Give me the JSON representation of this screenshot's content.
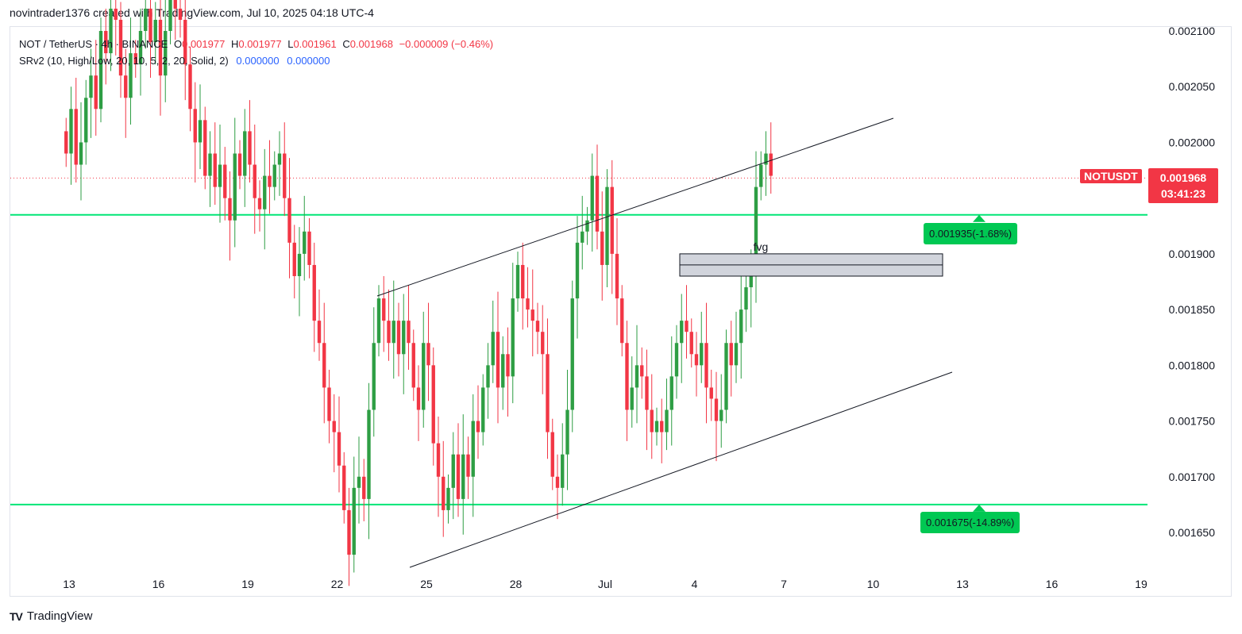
{
  "header": {
    "text": "novintrader1376 created with TradingView.com, Jul 10, 2025 04:18 UTC-4"
  },
  "legend": {
    "symbol": "NOT / TetherUS · 4h · BINANCE",
    "o_label": "O",
    "o": "0.001977",
    "h_label": "H",
    "h": "0.001977",
    "l_label": "L",
    "l": "0.001961",
    "c_label": "C",
    "c": "0.001968",
    "change": "−0.000009 (−0.46%)",
    "indicator": "SRv2 (10, High/Low, 20, 10, 5, 2, 20, Solid, 2)",
    "ind_v1": "0.000000",
    "ind_v2": "0.000000"
  },
  "price_tag": {
    "symbol": "NOTUSDT",
    "price": "0.001968",
    "countdown": "03:41:23"
  },
  "levels": [
    {
      "price": 0.001935,
      "label": "0.001935(-1.68%)"
    },
    {
      "price": 0.001675,
      "label": "0.001675(-14.89%)"
    }
  ],
  "fvg": {
    "label": "fvg",
    "top": 0.0019,
    "mid": 0.00189,
    "bottom": 0.00188
  },
  "footer": {
    "brand": "TradingView"
  },
  "colors": {
    "up": "#2e9e44",
    "down": "#f23645",
    "level": "#00e676",
    "accent": "#00c853"
  },
  "chart_data": {
    "type": "candlestick",
    "title": "NOT / TetherUS · 4h · BINANCE",
    "ylim": [
      0.00162,
      0.0021
    ],
    "y_ticks": [
      "0.002100",
      "0.002050",
      "0.002000",
      "0.001950",
      "0.001900",
      "0.001850",
      "0.001800",
      "0.001750",
      "0.001700",
      "0.001650"
    ],
    "x_ticks": [
      "13",
      "16",
      "19",
      "22",
      "25",
      "28",
      "Jul",
      "4",
      "7",
      "10",
      "13",
      "16",
      "19"
    ],
    "x_tick_days": [
      13,
      16,
      19,
      22,
      25,
      28,
      31,
      34,
      37,
      40,
      43,
      46,
      49
    ],
    "candles_per_day": 6,
    "first_candle_day": 12.9,
    "closes": [
      0.00199,
      0.00203,
      0.00198,
      0.002,
      0.00204,
      0.00206,
      0.00203,
      0.0021,
      0.00208,
      0.00212,
      0.00211,
      0.00206,
      0.00204,
      0.00208,
      0.00207,
      0.0021,
      0.00212,
      0.00209,
      0.00211,
      0.00206,
      0.0021,
      0.00213,
      0.00212,
      0.00211,
      0.00207,
      0.00203,
      0.002,
      0.00202,
      0.00197,
      0.00199,
      0.00196,
      0.00198,
      0.00195,
      0.00193,
      0.00199,
      0.00197,
      0.00201,
      0.00198,
      0.00195,
      0.00194,
      0.00197,
      0.00196,
      0.00198,
      0.00199,
      0.00195,
      0.00191,
      0.00188,
      0.0019,
      0.00192,
      0.00189,
      0.00184,
      0.00182,
      0.00178,
      0.00175,
      0.00174,
      0.00171,
      0.00167,
      0.00163,
      0.00169,
      0.0017,
      0.00168,
      0.00176,
      0.00182,
      0.00186,
      0.00184,
      0.00182,
      0.00184,
      0.00181,
      0.00184,
      0.00182,
      0.00178,
      0.00176,
      0.00182,
      0.0018,
      0.00173,
      0.0017,
      0.00167,
      0.00169,
      0.00172,
      0.00168,
      0.00172,
      0.0017,
      0.00175,
      0.00174,
      0.00178,
      0.0018,
      0.00183,
      0.00178,
      0.00181,
      0.00179,
      0.00186,
      0.00189,
      0.00186,
      0.00185,
      0.00184,
      0.00183,
      0.00181,
      0.00174,
      0.0017,
      0.00169,
      0.00172,
      0.00176,
      0.00186,
      0.00191,
      0.00192,
      0.00193,
      0.00197,
      0.00192,
      0.00189,
      0.00196,
      0.0019,
      0.00186,
      0.00182,
      0.00176,
      0.00178,
      0.0018,
      0.00179,
      0.00176,
      0.00174,
      0.00175,
      0.00174,
      0.00176,
      0.00179,
      0.00182,
      0.00184,
      0.00183,
      0.00181,
      0.0018,
      0.00182,
      0.00178,
      0.00177,
      0.00175,
      0.00176,
      0.00182,
      0.0018,
      0.00182,
      0.00185,
      0.00187,
      0.00188,
      0.00196,
      0.00198,
      0.00199,
      0.00197
    ]
  }
}
